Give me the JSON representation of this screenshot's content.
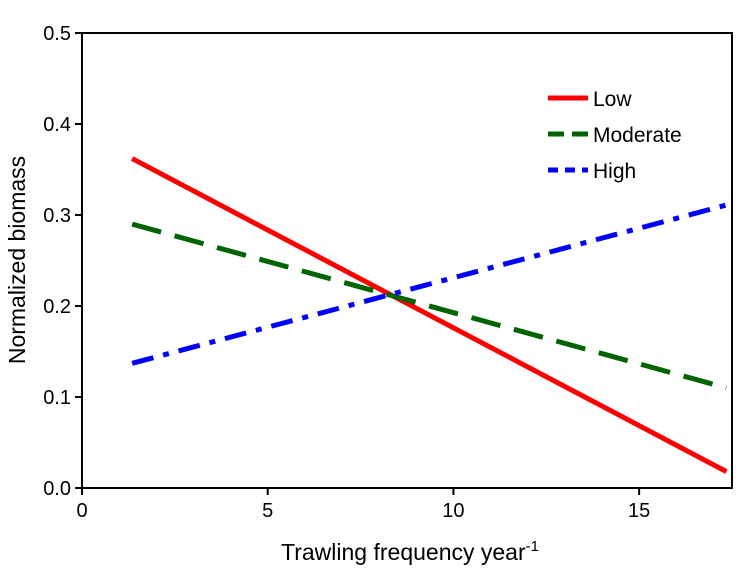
{
  "chart_data": {
    "type": "line",
    "title": "",
    "xlabel": "Trawling frequency year",
    "xlabel_superscript": "-1",
    "ylabel": "Normalized biomass",
    "xlim": [
      0,
      17.5
    ],
    "ylim": [
      0,
      0.5
    ],
    "xticks": [
      0,
      5,
      10,
      15
    ],
    "xtick_labels": [
      "0",
      "5",
      "10",
      "15"
    ],
    "yticks": [
      0,
      0.1,
      0.2,
      0.3,
      0.4,
      0.5
    ],
    "ytick_labels": [
      "0.0",
      "0.1",
      "0.2",
      "0.3",
      "0.4",
      "0.5"
    ],
    "grid": false,
    "legend_position": "top-right",
    "series": [
      {
        "name": "Low",
        "color": "#ff0000",
        "style": "solid",
        "x": [
          1.35,
          17.35
        ],
        "y": [
          0.362,
          0.018
        ]
      },
      {
        "name": "Moderate",
        "color": "#006400",
        "style": "dashed",
        "x": [
          1.35,
          17.35
        ],
        "y": [
          0.29,
          0.11
        ]
      },
      {
        "name": "High",
        "color": "#0000ff",
        "style": "dashdot",
        "x": [
          1.35,
          17.35
        ],
        "y": [
          0.137,
          0.311
        ]
      }
    ]
  }
}
